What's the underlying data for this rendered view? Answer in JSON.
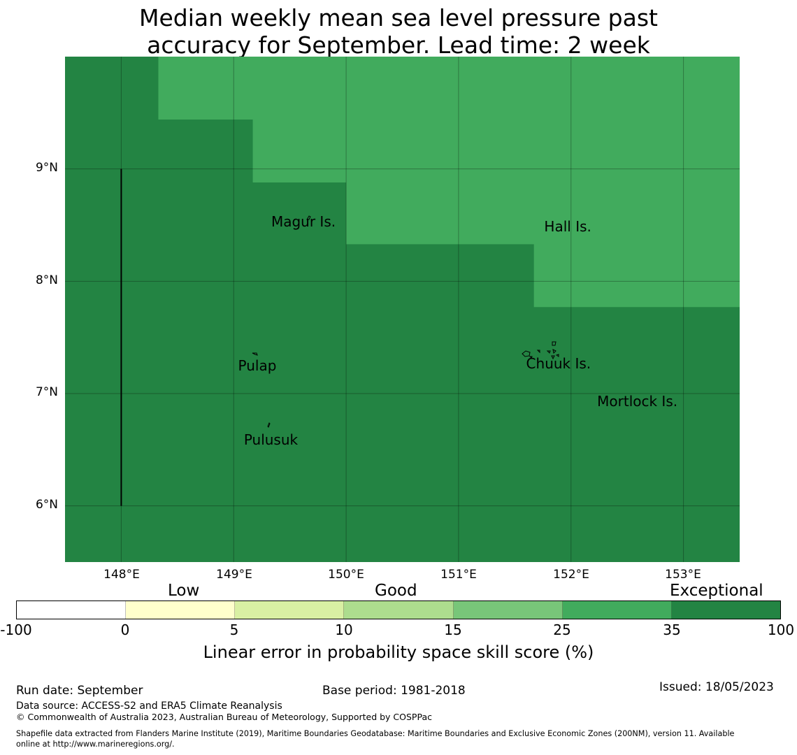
{
  "title": {
    "line1": "Median weekly mean sea level pressure past",
    "line2": "accuracy for September. Lead time: 2 week"
  },
  "map": {
    "lon_range": [
      147.5,
      153.5
    ],
    "lat_range": [
      5.5,
      10.0
    ],
    "grid_size_deg": 0.8333,
    "colors": {
      "exceptional": "#238443",
      "high": "#41ab5d"
    },
    "lat_labels": [
      "9°N",
      "8°N",
      "7°N",
      "6°N"
    ],
    "lon_labels": [
      "148°E",
      "149°E",
      "150°E",
      "151°E",
      "152°E",
      "153°E"
    ],
    "places": [
      {
        "name": "Magur Is.",
        "lon": 149.62,
        "lat": 8.53
      },
      {
        "name": "Hall Is.",
        "lon": 151.97,
        "lat": 8.49
      },
      {
        "name": "Pulap",
        "lon": 149.21,
        "lat": 7.25
      },
      {
        "name": "Chuuk Is.",
        "lon": 151.89,
        "lat": 7.27
      },
      {
        "name": "Mortlock Is.",
        "lon": 152.59,
        "lat": 6.93
      },
      {
        "name": "Pulusuk",
        "lon": 149.33,
        "lat": 6.59
      }
    ],
    "boundary_line": {
      "lon": 148.0,
      "lat_from": 6.0,
      "lat_to": 9.0
    }
  },
  "colorbar": {
    "categories": [
      "Low",
      "Good",
      "Exceptional"
    ],
    "ticks": [
      "-100",
      "0",
      "5",
      "10",
      "15",
      "25",
      "35",
      "100"
    ],
    "colors": [
      "#ffffff",
      "#ffffcc",
      "#d9f0a3",
      "#addd8e",
      "#78c679",
      "#41ab5d",
      "#238443"
    ],
    "label": "Linear error in probability space skill score (%)"
  },
  "footer": {
    "run_date": "Run date: September",
    "base_period": "Base period: 1981-2018",
    "issued": "Issued: 18/05/2023",
    "data_source": "Data source: ACCESS-S2 and ERA5 Climate Reanalysis",
    "copyright": "© Commonwealth of Australia 2023, Australian Bureau of Meteorology, Supported by COSPPac",
    "shapefile_line1": "Shapefile data extracted from Flanders Marine Institute (2019), Maritime Boundaries Geodatabase: Maritime Boundaries and Exclusive Economic Zones (200NM), version 11. Available",
    "shapefile_line2": "online at http://www.marineregions.org/."
  }
}
